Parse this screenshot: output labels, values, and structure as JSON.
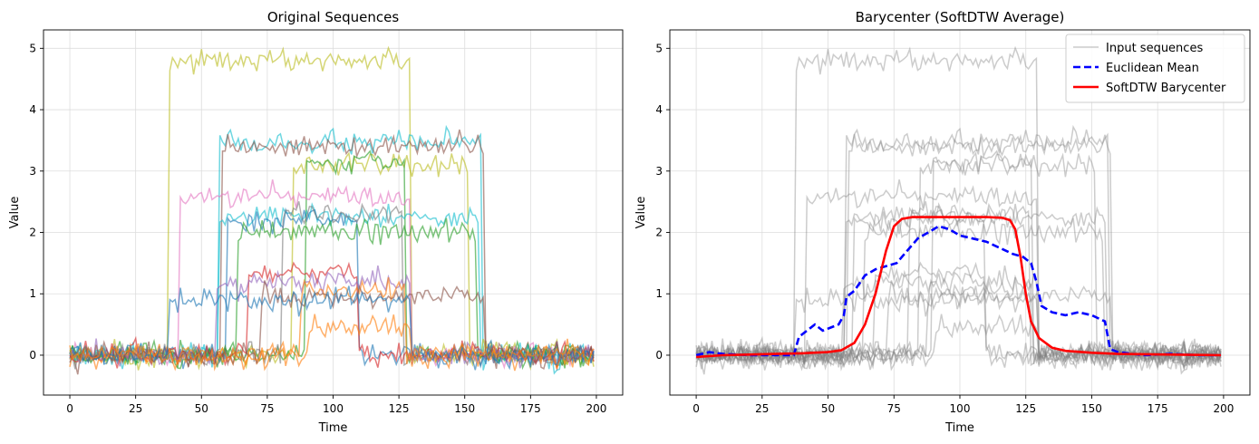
{
  "chart_data": [
    {
      "type": "line",
      "title": "Original Sequences",
      "xlabel": "Time",
      "ylabel": "Value",
      "xlim": [
        -10,
        210
      ],
      "ylim": [
        -0.65,
        5.3
      ],
      "xticks": [
        0,
        25,
        50,
        75,
        100,
        125,
        150,
        175,
        200
      ],
      "yticks": [
        0,
        1,
        2,
        3,
        4,
        5
      ],
      "grid": true,
      "series_style": "colored, semi-transparent",
      "sequences": [
        {
          "color": "#bcbd22",
          "level": 4.8,
          "start": 38,
          "end": 130
        },
        {
          "color": "#17becf",
          "level": 3.45,
          "start": 57,
          "end": 157
        },
        {
          "color": "#8c564b",
          "level": 3.4,
          "start": 58,
          "end": 158
        },
        {
          "color": "#bcbd22",
          "level": 3.1,
          "start": 85,
          "end": 152
        },
        {
          "color": "#2ca02c",
          "level": 3.15,
          "start": 90,
          "end": 128
        },
        {
          "color": "#e377c2",
          "level": 2.6,
          "start": 42,
          "end": 130
        },
        {
          "color": "#17becf",
          "level": 2.25,
          "start": 57,
          "end": 156
        },
        {
          "color": "#1f77b4",
          "level": 2.2,
          "start": 60,
          "end": 110
        },
        {
          "color": "#7f7f7f",
          "level": 2.3,
          "start": 81,
          "end": 127
        },
        {
          "color": "#2ca02c",
          "level": 2.0,
          "start": 64,
          "end": 155
        },
        {
          "color": "#d62728",
          "level": 1.35,
          "start": 68,
          "end": 110
        },
        {
          "color": "#9467bd",
          "level": 1.2,
          "start": 56,
          "end": 130
        },
        {
          "color": "#ff7f0e",
          "level": 1.05,
          "start": 88,
          "end": 128
        },
        {
          "color": "#8c564b",
          "level": 0.95,
          "start": 73,
          "end": 158
        },
        {
          "color": "#1f77b4",
          "level": 0.9,
          "start": 38,
          "end": 130
        },
        {
          "color": "#ff7f0e",
          "level": 0.45,
          "start": 91,
          "end": 130
        }
      ]
    },
    {
      "type": "line",
      "title": "Barycenter (SoftDTW Average)",
      "xlabel": "Time",
      "ylabel": "Value",
      "xlim": [
        -10,
        210
      ],
      "ylim": [
        -0.65,
        5.3
      ],
      "xticks": [
        0,
        25,
        50,
        75,
        100,
        125,
        150,
        175,
        200
      ],
      "yticks": [
        0,
        1,
        2,
        3,
        4,
        5
      ],
      "grid": true,
      "legend_position": "top-right",
      "series": [
        {
          "name": "Input sequences",
          "color": "#808080",
          "style": "solid"
        },
        {
          "name": "Euclidean Mean",
          "color": "#0000ff",
          "style": "dashed",
          "points": [
            [
              0,
              0.0
            ],
            [
              5,
              0.05
            ],
            [
              10,
              0.02
            ],
            [
              20,
              0.0
            ],
            [
              30,
              0.0
            ],
            [
              37,
              0.0
            ],
            [
              39,
              0.3
            ],
            [
              42,
              0.4
            ],
            [
              45,
              0.5
            ],
            [
              48,
              0.4
            ],
            [
              51,
              0.45
            ],
            [
              54,
              0.5
            ],
            [
              56,
              0.65
            ],
            [
              57,
              0.95
            ],
            [
              60,
              1.05
            ],
            [
              64,
              1.3
            ],
            [
              68,
              1.4
            ],
            [
              72,
              1.45
            ],
            [
              76,
              1.5
            ],
            [
              80,
              1.7
            ],
            [
              84,
              1.9
            ],
            [
              88,
              2.0
            ],
            [
              92,
              2.1
            ],
            [
              96,
              2.05
            ],
            [
              100,
              1.95
            ],
            [
              105,
              1.9
            ],
            [
              110,
              1.85
            ],
            [
              115,
              1.75
            ],
            [
              120,
              1.65
            ],
            [
              124,
              1.6
            ],
            [
              127,
              1.5
            ],
            [
              129,
              1.2
            ],
            [
              131,
              0.8
            ],
            [
              135,
              0.7
            ],
            [
              140,
              0.65
            ],
            [
              145,
              0.7
            ],
            [
              150,
              0.65
            ],
            [
              155,
              0.55
            ],
            [
              157,
              0.1
            ],
            [
              160,
              0.05
            ],
            [
              170,
              0.0
            ],
            [
              180,
              0.02
            ],
            [
              190,
              0.0
            ],
            [
              199,
              0.0
            ]
          ]
        },
        {
          "name": "SoftDTW Barycenter",
          "color": "#ff0000",
          "style": "solid",
          "points": [
            [
              0,
              -0.03
            ],
            [
              10,
              0.0
            ],
            [
              20,
              0.01
            ],
            [
              30,
              0.02
            ],
            [
              40,
              0.03
            ],
            [
              50,
              0.05
            ],
            [
              55,
              0.08
            ],
            [
              60,
              0.2
            ],
            [
              64,
              0.5
            ],
            [
              68,
              1.0
            ],
            [
              72,
              1.7
            ],
            [
              75,
              2.1
            ],
            [
              78,
              2.22
            ],
            [
              82,
              2.25
            ],
            [
              90,
              2.25
            ],
            [
              100,
              2.25
            ],
            [
              110,
              2.25
            ],
            [
              116,
              2.24
            ],
            [
              119,
              2.2
            ],
            [
              121,
              2.05
            ],
            [
              123,
              1.6
            ],
            [
              125,
              1.0
            ],
            [
              127,
              0.55
            ],
            [
              130,
              0.28
            ],
            [
              135,
              0.12
            ],
            [
              140,
              0.07
            ],
            [
              150,
              0.04
            ],
            [
              160,
              0.02
            ],
            [
              180,
              0.01
            ],
            [
              199,
              0.0
            ]
          ]
        }
      ]
    }
  ]
}
